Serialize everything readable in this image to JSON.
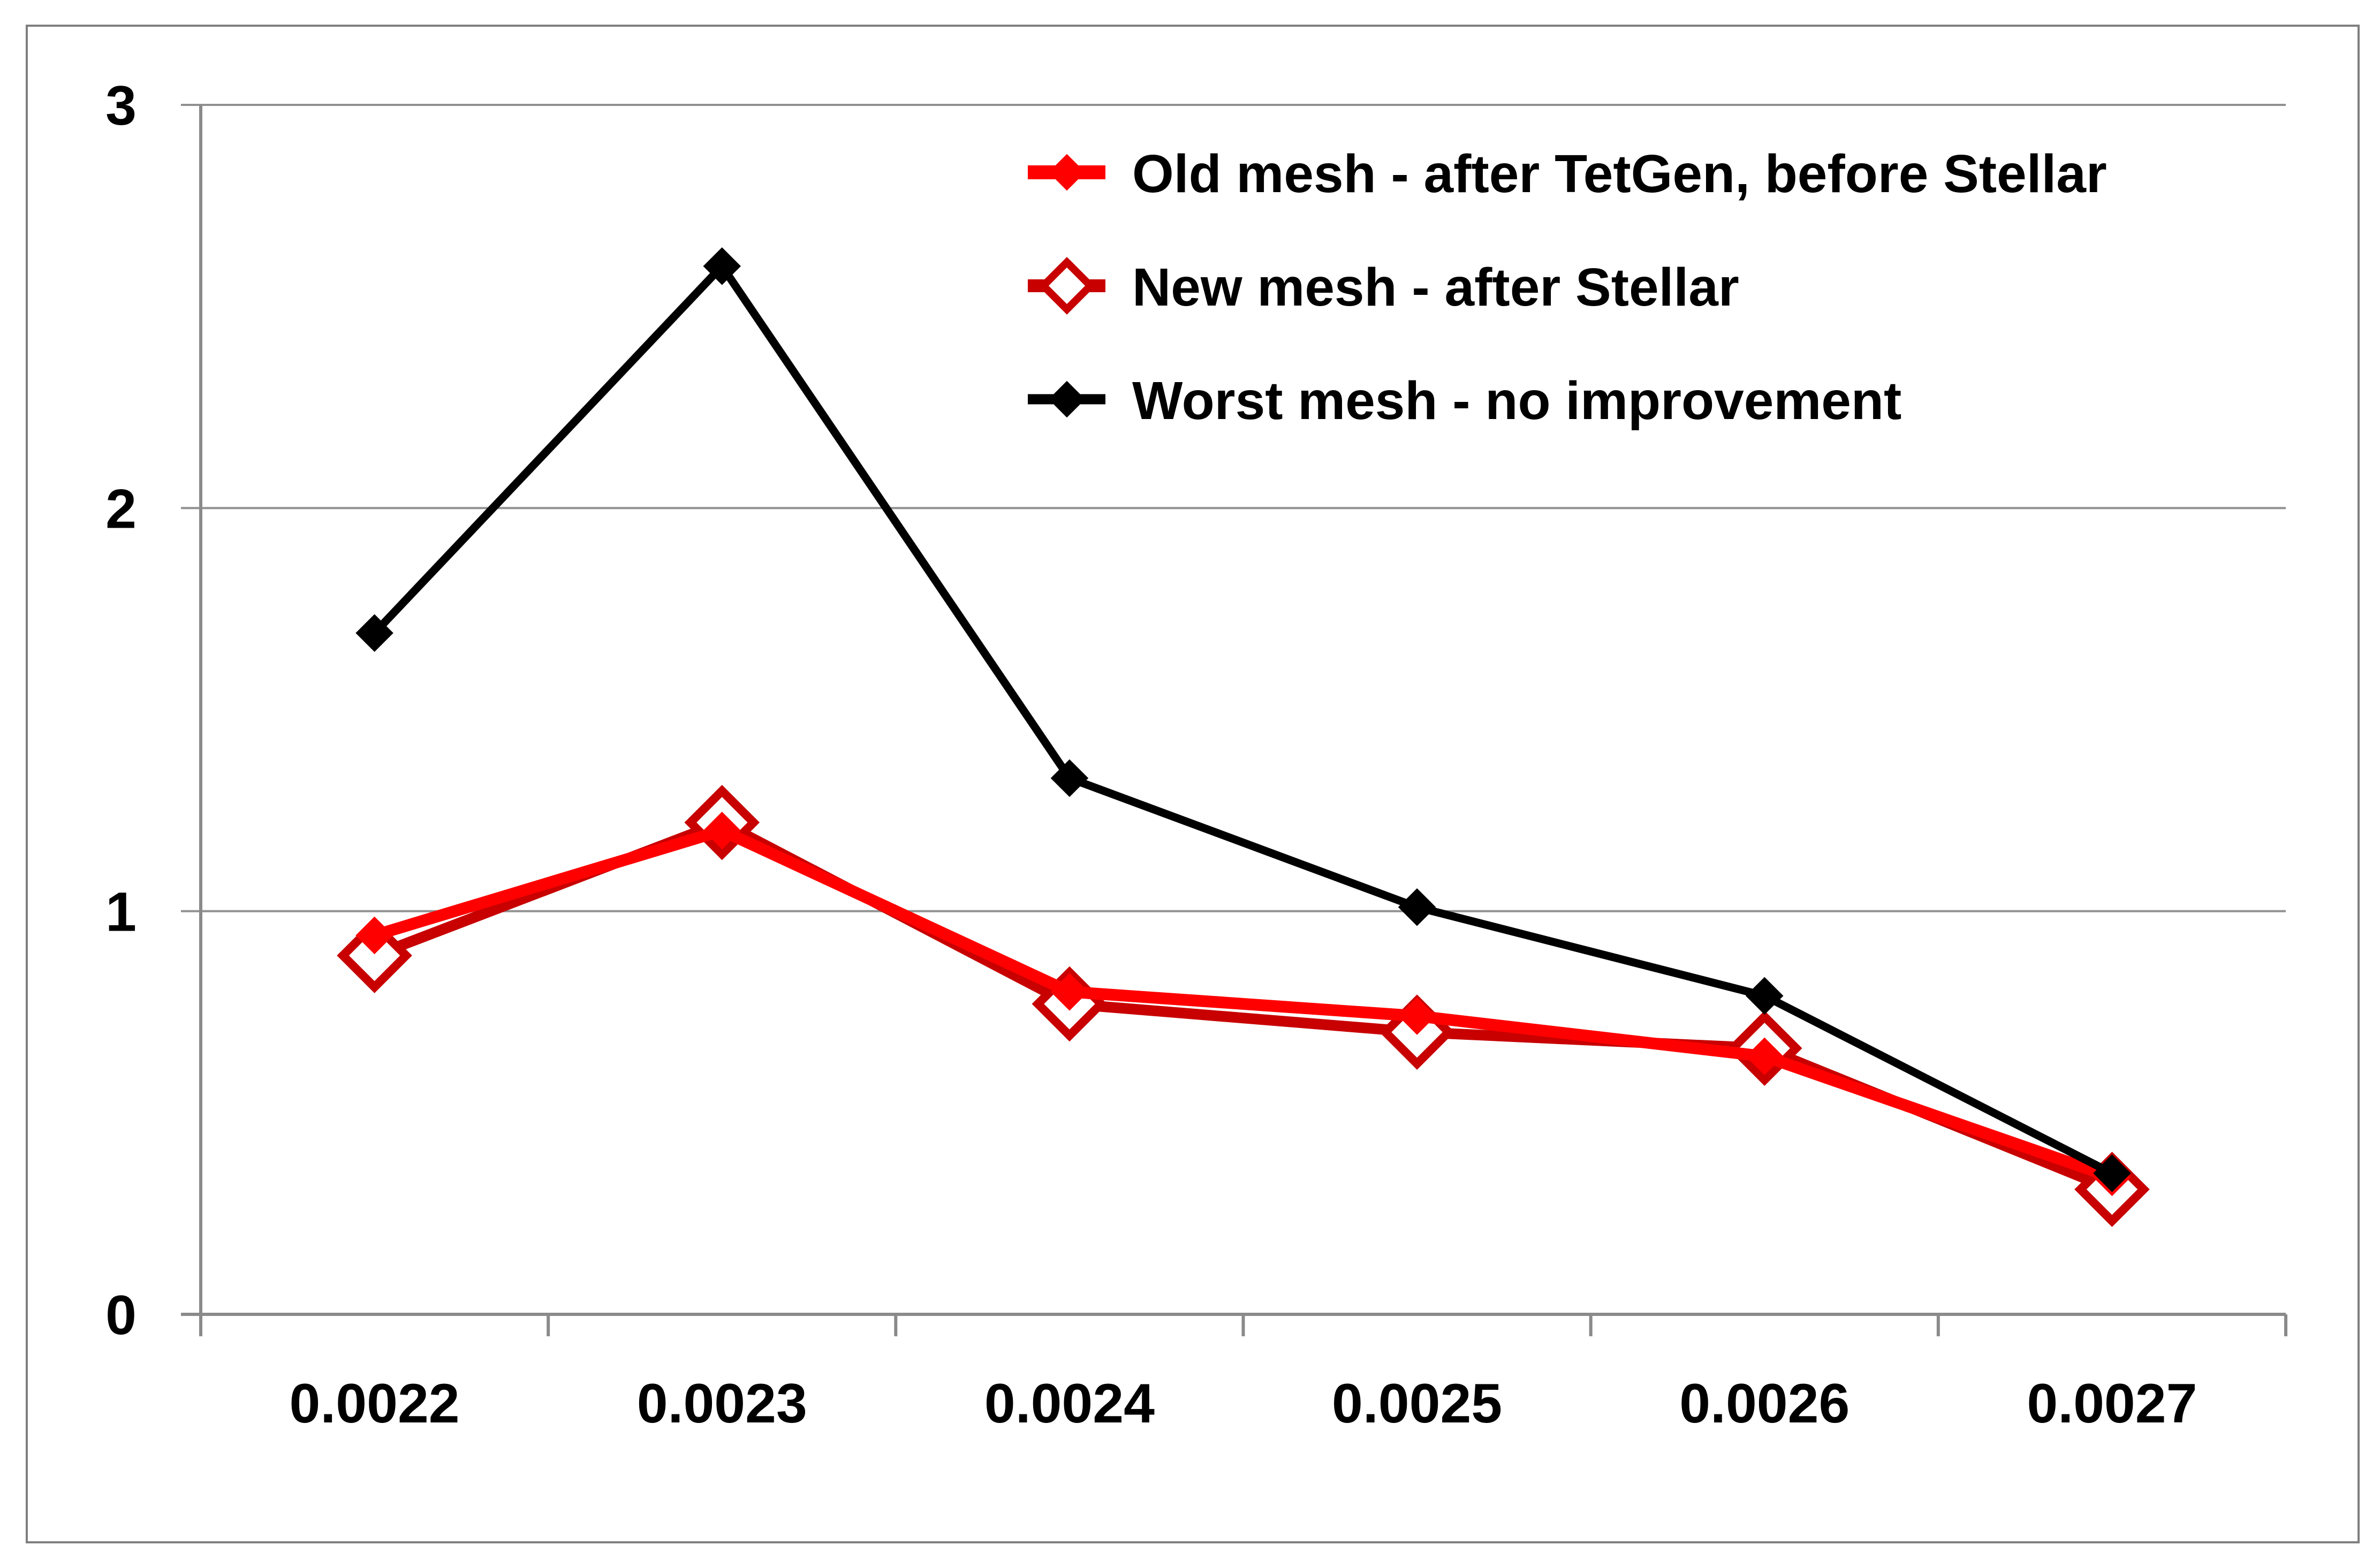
{
  "figure": {
    "background": "#ffffff",
    "frame_color": "#7f7f7f"
  },
  "chart_data": {
    "type": "line",
    "title": "",
    "xlabel": "",
    "ylabel": "",
    "categories": [
      "0.0022",
      "0.0023",
      "0.0024",
      "0.0025",
      "0.0026",
      "0.0027"
    ],
    "series": [
      {
        "name": "Old mesh - after TetGen, before Stellar",
        "values": [
          0.94,
          1.2,
          0.8,
          0.74,
          0.64,
          0.34
        ],
        "color": "#ff0000",
        "marker": "filled-diamond",
        "line_width": 22
      },
      {
        "name": "New mesh - after Stellar",
        "values": [
          0.89,
          1.22,
          0.77,
          0.7,
          0.66,
          0.31
        ],
        "color": "#c80000",
        "marker": "open-diamond",
        "line_width": 20
      },
      {
        "name": "Worst mesh - no improvement",
        "values": [
          1.69,
          2.6,
          1.33,
          1.01,
          0.79,
          0.35
        ],
        "color": "#000000",
        "marker": "filled-diamond",
        "line_width": 15
      }
    ],
    "ylim": [
      0,
      3
    ],
    "yticks": [
      "0",
      "1",
      "2",
      "3"
    ],
    "grid": "horizontal",
    "gridline_color": "#909090",
    "axis_color": "#8a8a8a",
    "legend_position": "top-right-inside",
    "legend_text_color": "#000000"
  }
}
